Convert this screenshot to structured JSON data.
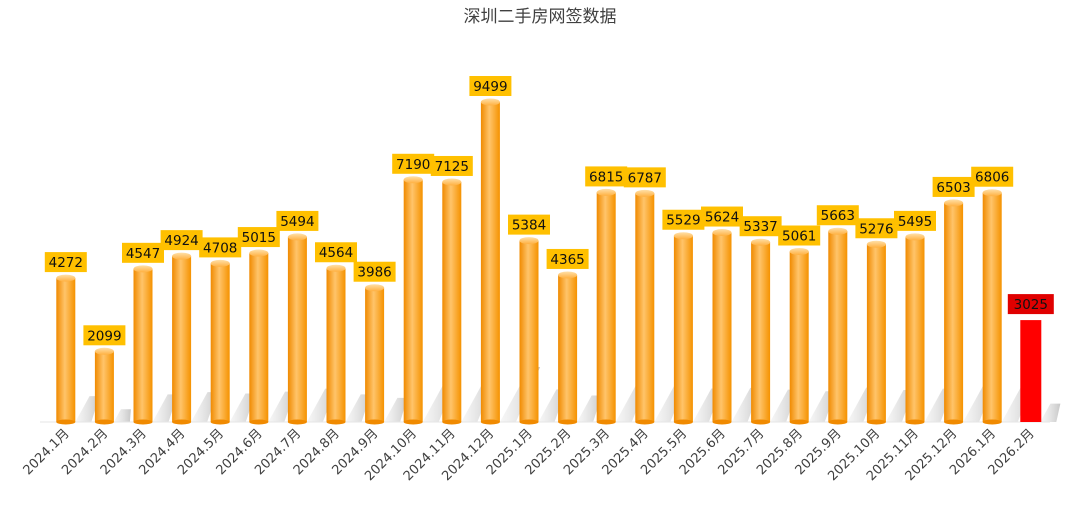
{
  "chart_data": {
    "type": "bar",
    "title": "深圳二手房网签数据",
    "xlabel": "",
    "ylabel": "",
    "ylim": [
      0,
      11000
    ],
    "grid": false,
    "legend": "none",
    "categories": [
      "2024.1月",
      "2024.2月",
      "2024.3月",
      "2024.4月",
      "2024.5月",
      "2024.6月",
      "2024.7月",
      "2024.8月",
      "2024.9月",
      "2024.10月",
      "2024.11月",
      "2024.12月",
      "2025.1月",
      "2025.2月",
      "2025.3月",
      "2025.4月",
      "2025.5月",
      "2025.6月",
      "2025.7月",
      "2025.8月",
      "2025.9月",
      "2025.10月",
      "2025.11月",
      "2025.12月",
      "2026.1月",
      "2026.2月"
    ],
    "series": [
      {
        "values": [
          4272,
          2099,
          4547,
          4924,
          4708,
          5015,
          5494,
          4564,
          3986,
          7190,
          7125,
          9499,
          5384,
          4365,
          6815,
          6787,
          5529,
          5624,
          5337,
          5061,
          5663,
          5276,
          5495,
          6503,
          6806,
          3025
        ],
        "highlight_index": 25
      }
    ],
    "colors": {
      "bar": "#ffa020",
      "bar_highlight": "#ff0000",
      "label_bg": "#ffc000",
      "label_bg_highlight": "#e00000"
    }
  }
}
